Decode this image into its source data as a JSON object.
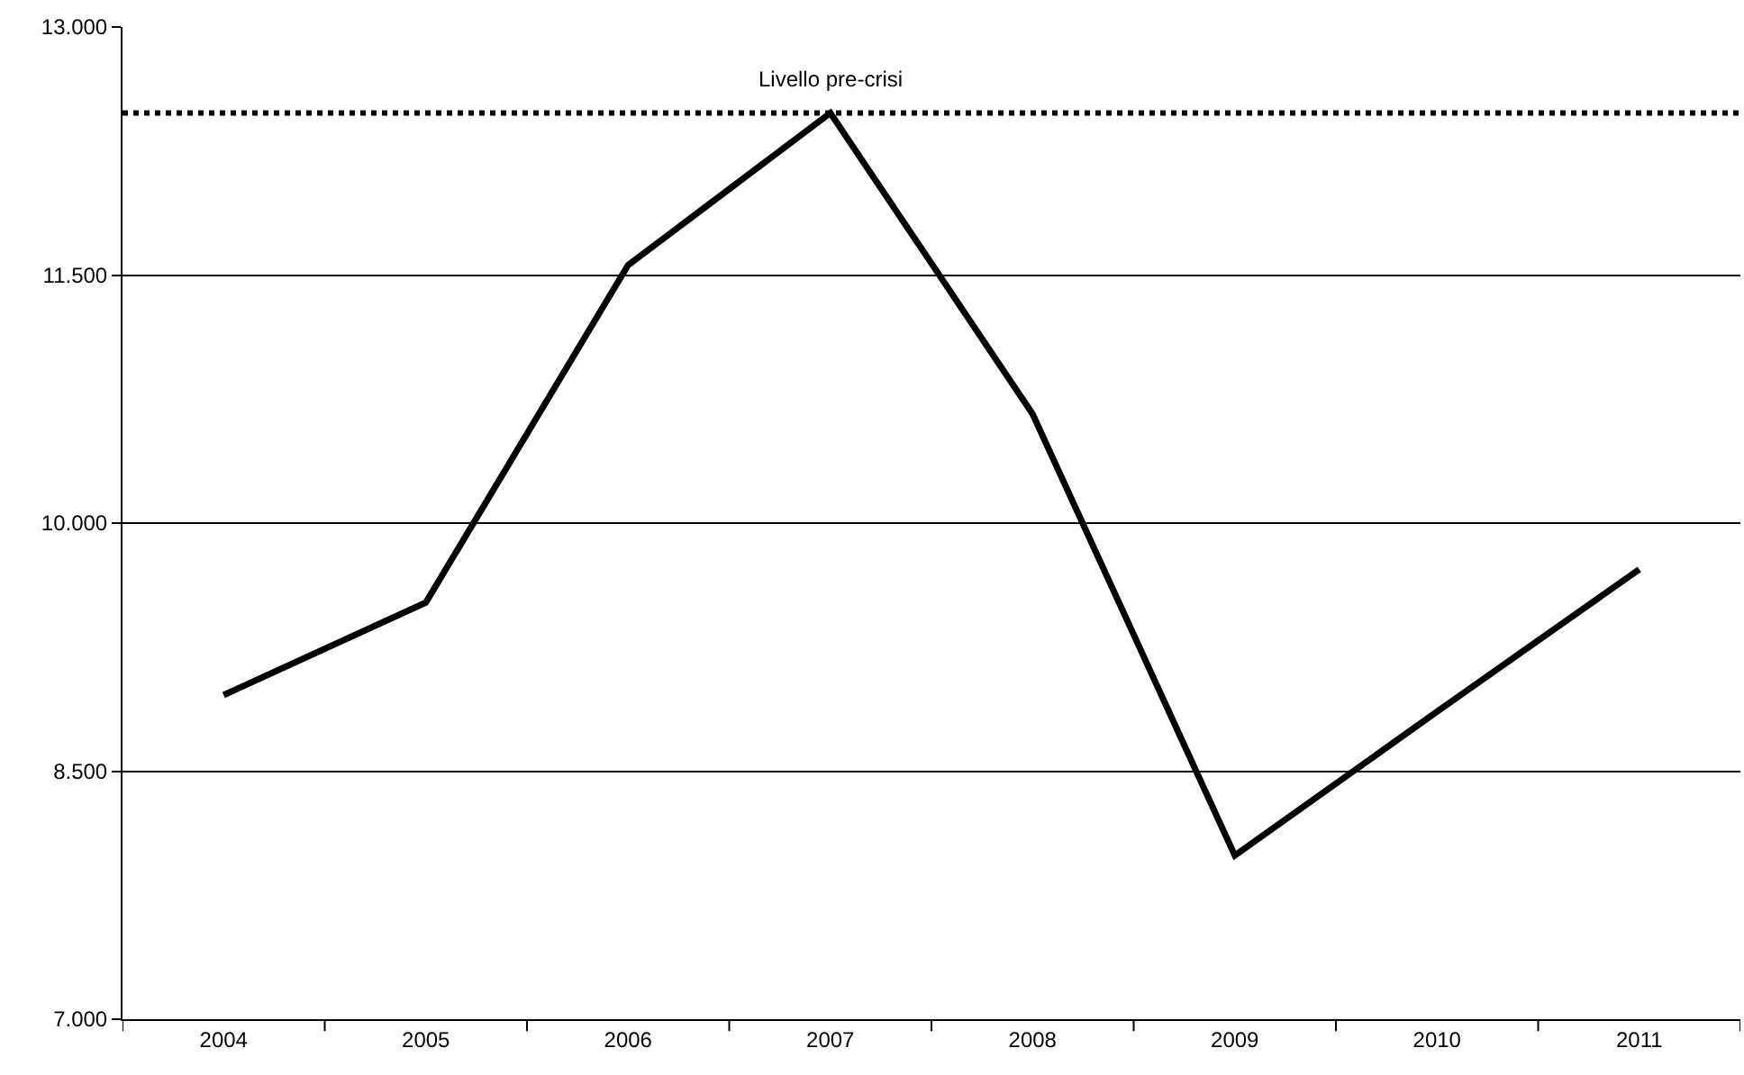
{
  "chart_data": {
    "type": "line",
    "categories": [
      "2004",
      "2005",
      "2006",
      "2007",
      "2008",
      "2009",
      "2010",
      "2011"
    ],
    "series": [
      {
        "color": "#000000",
        "values": [
          8960,
          9520,
          11560,
          12480,
          10660,
          7990,
          8860,
          9720
        ]
      }
    ],
    "ylim": [
      7000,
      13000
    ],
    "yticks": [
      {
        "value": 7000,
        "label": "7.000"
      },
      {
        "value": 8500,
        "label": "8.500"
      },
      {
        "value": 10000,
        "label": "10.000"
      },
      {
        "value": 11500,
        "label": "11.500"
      },
      {
        "value": 13000,
        "label": "13.000"
      }
    ],
    "grid": "y",
    "marker": "none",
    "line_style": "solid",
    "ref_lines": [
      {
        "axis": "y",
        "value": 12480,
        "label": "Livello pre-crisi",
        "color": "#000000",
        "line_style": "dotted"
      }
    ]
  }
}
